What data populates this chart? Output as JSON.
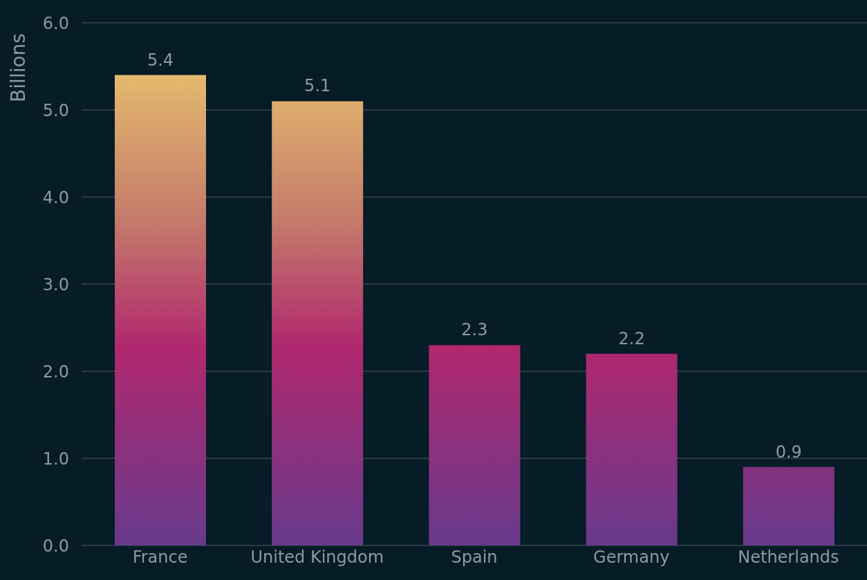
{
  "chart_data": {
    "type": "bar",
    "ylabel": "Billions",
    "categories": [
      "France",
      "United Kingdom",
      "Spain",
      "Germany",
      "Netherlands"
    ],
    "values": [
      5.4,
      5.1,
      2.3,
      2.2,
      0.9
    ],
    "color": "#b0286e",
    "ylim": [
      0,
      6
    ],
    "yticks": [
      {
        "value": 0,
        "label": "0.0"
      },
      {
        "value": 1,
        "label": "1.0"
      },
      {
        "value": 2,
        "label": "2.0"
      },
      {
        "value": 3,
        "label": "3.0"
      },
      {
        "value": 4,
        "label": "4.0"
      },
      {
        "value": 5,
        "label": "5.0"
      },
      {
        "value": 6,
        "label": "6.0"
      }
    ],
    "grid": "y",
    "data_labels": true
  }
}
